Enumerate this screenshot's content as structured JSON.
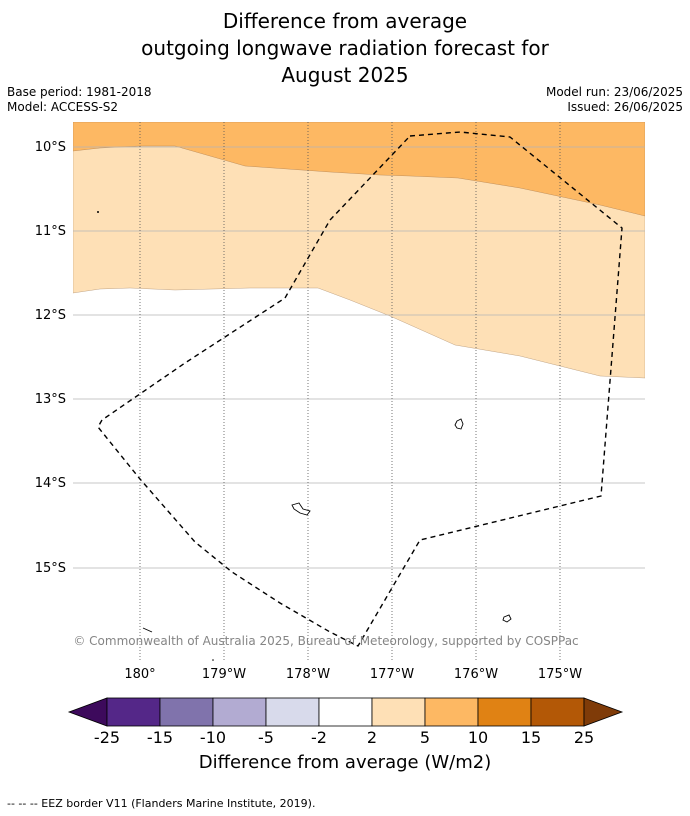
{
  "title": {
    "line1": "Difference from average",
    "line2": "outgoing longwave radiation forecast for",
    "line3": "August 2025"
  },
  "meta": {
    "base_period": "Base period: 1981-2018",
    "model": "Model: ACCESS-S2",
    "model_run": "Model run: 23/06/2025",
    "issued": "Issued: 26/06/2025"
  },
  "map": {
    "lat_labels": [
      "10°S",
      "11°S",
      "12°S",
      "13°S",
      "14°S",
      "15°S"
    ],
    "lon_labels": [
      "180°",
      "179°W",
      "178°W",
      "177°W",
      "176°W",
      "175°W"
    ],
    "attribution": "© Commonwealth of Australia 2025, Bureau of Meteorology, supported by COSPPac",
    "anomaly_regions": [
      {
        "category": "5 to 10",
        "color": "#fdb863"
      },
      {
        "category": "2 to 5",
        "color": "#fee0b6"
      },
      {
        "category": "-2 to 2",
        "color": "#ffffff"
      }
    ]
  },
  "colorbar": {
    "title": "Difference from average (W/m2)",
    "ticks": [
      "-25",
      "-15",
      "-10",
      "-5",
      "-2",
      "2",
      "5",
      "10",
      "15",
      "25"
    ],
    "colors": [
      "#3d0a5c",
      "#542788",
      "#8073ac",
      "#b2abd2",
      "#d8daeb",
      "#ffffff",
      "#fee0b6",
      "#fdb863",
      "#e08214",
      "#b35806",
      "#7f3b08"
    ]
  },
  "footer": {
    "legend_text": "--  --  -- EEZ border V11 (Flanders Marine Institute, 2019)."
  }
}
